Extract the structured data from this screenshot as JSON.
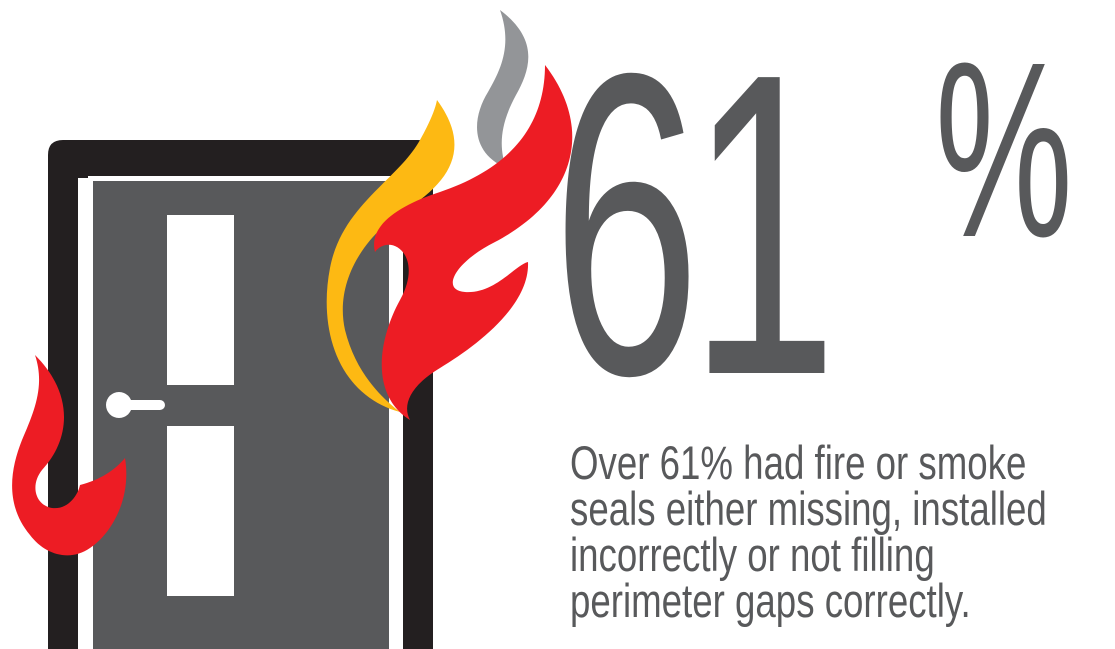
{
  "headline": {
    "number": "61",
    "percent_sign": "%"
  },
  "caption": {
    "lines": [
      "Over 61% had fire or smoke",
      "seals either missing, installed",
      "incorrectly or not filling",
      "perimeter gaps correctly."
    ]
  },
  "colors": {
    "text_gray": "#58595b",
    "door_frame": "#231f20",
    "door_panel": "#58595b",
    "flame_red": "#ed1c24",
    "flame_yellow": "#fdb913",
    "smoke_gray": "#939598"
  },
  "icons": [
    "door-icon",
    "flame-icon",
    "smoke-icon"
  ]
}
